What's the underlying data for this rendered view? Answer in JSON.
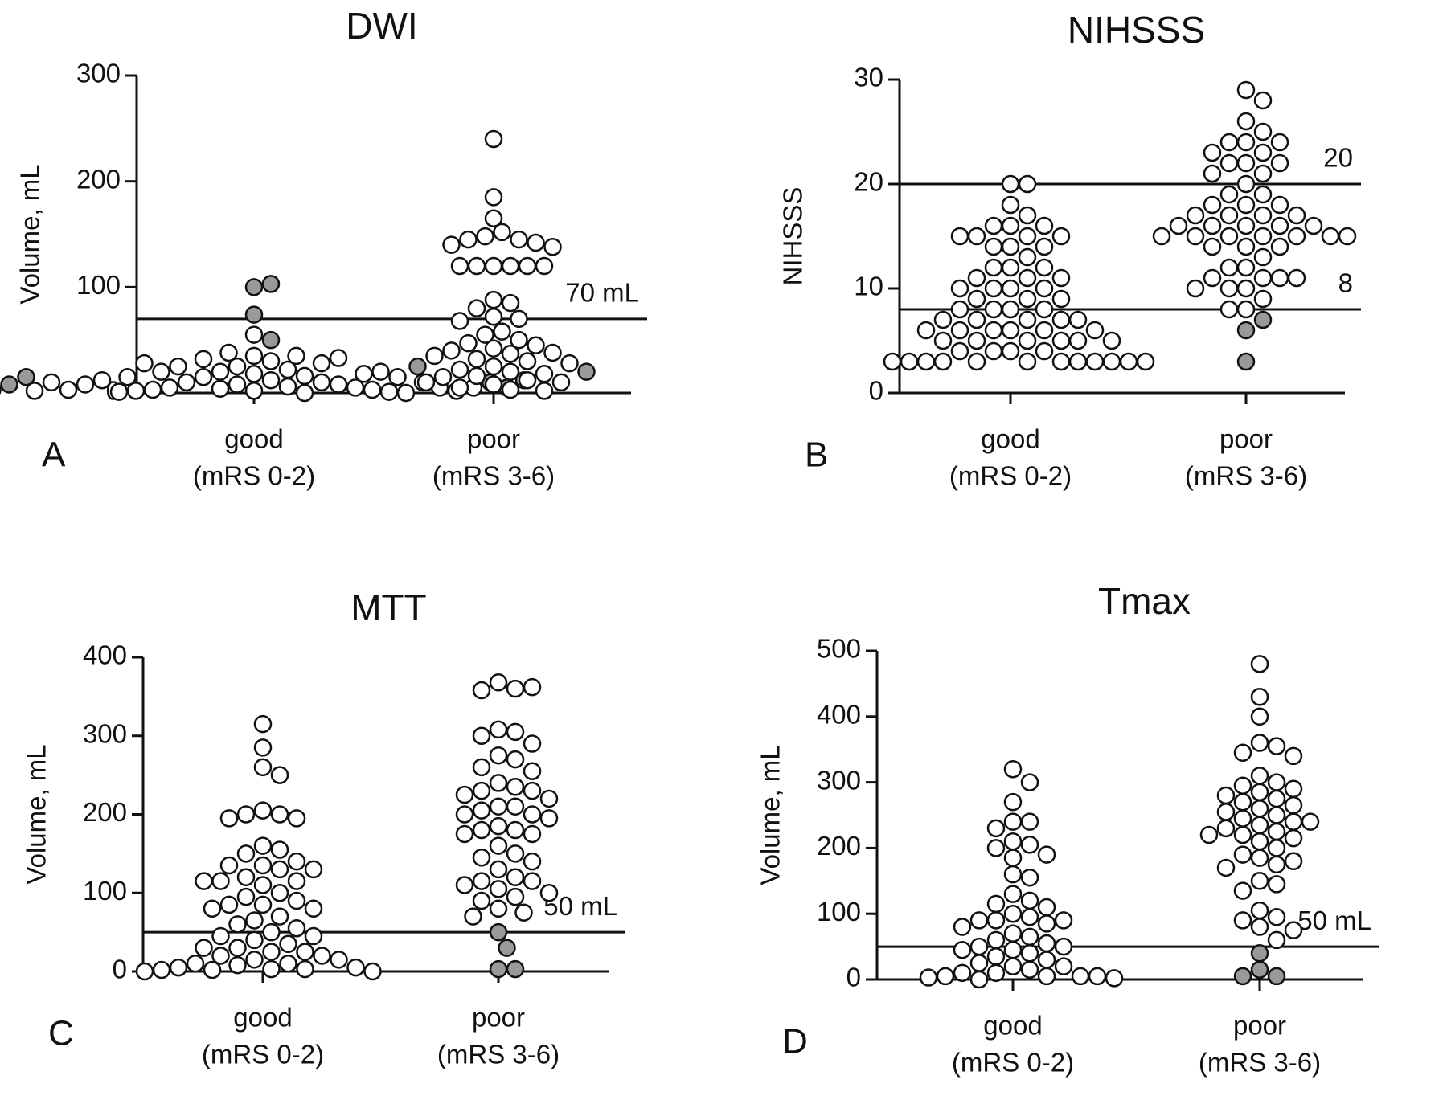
{
  "chart_data": [
    {
      "type": "strip",
      "title": "DWI",
      "panel": "A",
      "ylabel": "Volume, mL",
      "categories": [
        "good",
        "poor"
      ],
      "category_sublabels": [
        "(mRS 0-2)",
        "(mRS 3-6)"
      ],
      "ylim": [
        0,
        300
      ],
      "yticks": [
        0,
        100,
        200,
        300
      ],
      "color": "#ffffff",
      "filled_color": "#999999",
      "reference_lines": [
        {
          "value": 70,
          "label": "70 mL"
        }
      ],
      "values": [
        [
          35,
          30,
          25,
          22,
          20,
          18,
          16,
          15,
          12,
          10,
          10,
          8,
          8,
          6,
          5,
          5,
          4,
          3,
          3,
          2,
          2,
          1,
          1,
          0,
          0,
          35,
          32,
          28,
          25,
          20,
          18,
          15,
          12,
          10,
          8,
          5,
          3,
          2,
          55,
          38,
          33,
          28,
          20,
          15,
          10,
          5,
          2
        ],
        [
          240,
          185,
          165,
          152,
          148,
          145,
          145,
          142,
          140,
          138,
          120,
          120,
          120,
          120,
          120,
          120,
          88,
          85,
          80,
          72,
          70,
          68,
          58,
          55,
          50,
          47,
          45,
          42,
          40,
          38,
          37,
          35,
          32,
          30,
          28,
          25,
          22,
          20,
          18,
          16,
          15,
          12,
          10,
          10,
          8,
          5,
          3,
          2
        ]
      ],
      "filled_values": [
        [
          100,
          103,
          74,
          50,
          15,
          10,
          8,
          5,
          3,
          12,
          6
        ],
        [
          25,
          20
        ]
      ]
    },
    {
      "type": "strip",
      "title": "NIHSSS",
      "panel": "B",
      "ylabel": "NIHSSS",
      "categories": [
        "good",
        "poor"
      ],
      "category_sublabels": [
        "(mRS 0-2)",
        "(mRS 3-6)"
      ],
      "ylim": [
        0,
        30
      ],
      "yticks": [
        0,
        10,
        20,
        30
      ],
      "color": "#ffffff",
      "filled_color": "#999999",
      "reference_lines": [
        20,
        8
      ],
      "values": [
        [
          20,
          20,
          18,
          17,
          16,
          16,
          16,
          15,
          15,
          15,
          15,
          14,
          14,
          14,
          13,
          12,
          12,
          12,
          11,
          11,
          11,
          10,
          10,
          10,
          10,
          9,
          9,
          9,
          8,
          8,
          8,
          8,
          7,
          7,
          7,
          7,
          7,
          6,
          6,
          6,
          6,
          6,
          6,
          5,
          5,
          5,
          5,
          5,
          5,
          4,
          4,
          4,
          4,
          3,
          3,
          3,
          3,
          3,
          3,
          3,
          3,
          3,
          3,
          3,
          3
        ],
        [
          29,
          28,
          26,
          25,
          24,
          24,
          24,
          23,
          23,
          22,
          22,
          22,
          21,
          21,
          20,
          19,
          19,
          18,
          18,
          18,
          17,
          17,
          17,
          17,
          16,
          16,
          16,
          16,
          16,
          15,
          15,
          15,
          15,
          15,
          15,
          15,
          14,
          14,
          14,
          13,
          12,
          12,
          11,
          11,
          11,
          11,
          10,
          10,
          10,
          9,
          8,
          8
        ]
      ],
      "filled_values": [
        [],
        [
          7,
          6,
          3
        ]
      ]
    },
    {
      "type": "strip",
      "title": "MTT",
      "panel": "C",
      "ylabel": "Volume, mL",
      "categories": [
        "good",
        "poor"
      ],
      "category_sublabels": [
        "(mRS 0-2)",
        "(mRS 3-6)"
      ],
      "ylim": [
        0,
        400
      ],
      "yticks": [
        0,
        100,
        200,
        300,
        400
      ],
      "color": "#ffffff",
      "filled_color": "#999999",
      "reference_lines": [
        {
          "value": 50,
          "label": "50 mL"
        }
      ],
      "values": [
        [
          315,
          285,
          260,
          250,
          205,
          200,
          200,
          195,
          195,
          160,
          155,
          150,
          140,
          135,
          135,
          130,
          130,
          120,
          115,
          115,
          115,
          110,
          100,
          95,
          90,
          85,
          85,
          80,
          80,
          70,
          65,
          60,
          55,
          50,
          45,
          45,
          40,
          35,
          30,
          30,
          25,
          25,
          20,
          20,
          15,
          15,
          10,
          10,
          8,
          5,
          5,
          3,
          3,
          2,
          2,
          0,
          0
        ],
        [
          368,
          360,
          358,
          362,
          308,
          305,
          300,
          290,
          275,
          270,
          260,
          255,
          240,
          235,
          230,
          230,
          225,
          220,
          210,
          210,
          205,
          200,
          200,
          195,
          185,
          180,
          180,
          175,
          175,
          160,
          150,
          145,
          140,
          130,
          120,
          115,
          115,
          110,
          105,
          100,
          95,
          90,
          80,
          75,
          70
        ]
      ],
      "filled_values": [
        [],
        [
          50,
          30,
          3,
          3
        ]
      ]
    },
    {
      "type": "strip",
      "title": "Tmax",
      "panel": "D",
      "ylabel": "Volume, mL",
      "categories": [
        "good",
        "poor"
      ],
      "category_sublabels": [
        "(mRS 0-2)",
        "(mRS 3-6)"
      ],
      "ylim": [
        0,
        500
      ],
      "yticks": [
        0,
        100,
        200,
        300,
        400,
        500
      ],
      "color": "#ffffff",
      "filled_color": "#999999",
      "reference_lines": [
        {
          "value": 50,
          "label": "50 mL"
        }
      ],
      "values": [
        [
          320,
          300,
          270,
          240,
          240,
          230,
          210,
          205,
          200,
          190,
          185,
          160,
          155,
          130,
          120,
          115,
          110,
          100,
          95,
          90,
          90,
          90,
          85,
          80,
          70,
          65,
          60,
          55,
          50,
          50,
          45,
          45,
          40,
          35,
          30,
          25,
          20,
          20,
          15,
          10,
          10,
          5,
          5,
          5,
          5,
          3,
          2,
          0
        ],
        [
          480,
          430,
          400,
          360,
          355,
          345,
          340,
          310,
          300,
          295,
          290,
          285,
          280,
          275,
          270,
          265,
          260,
          255,
          250,
          245,
          240,
          240,
          235,
          230,
          225,
          220,
          220,
          215,
          210,
          200,
          190,
          185,
          180,
          175,
          170,
          150,
          145,
          135,
          105,
          95,
          90,
          80,
          75,
          60
        ]
      ],
      "filled_values": [
        [],
        [
          40,
          15,
          5,
          5
        ]
      ]
    }
  ]
}
